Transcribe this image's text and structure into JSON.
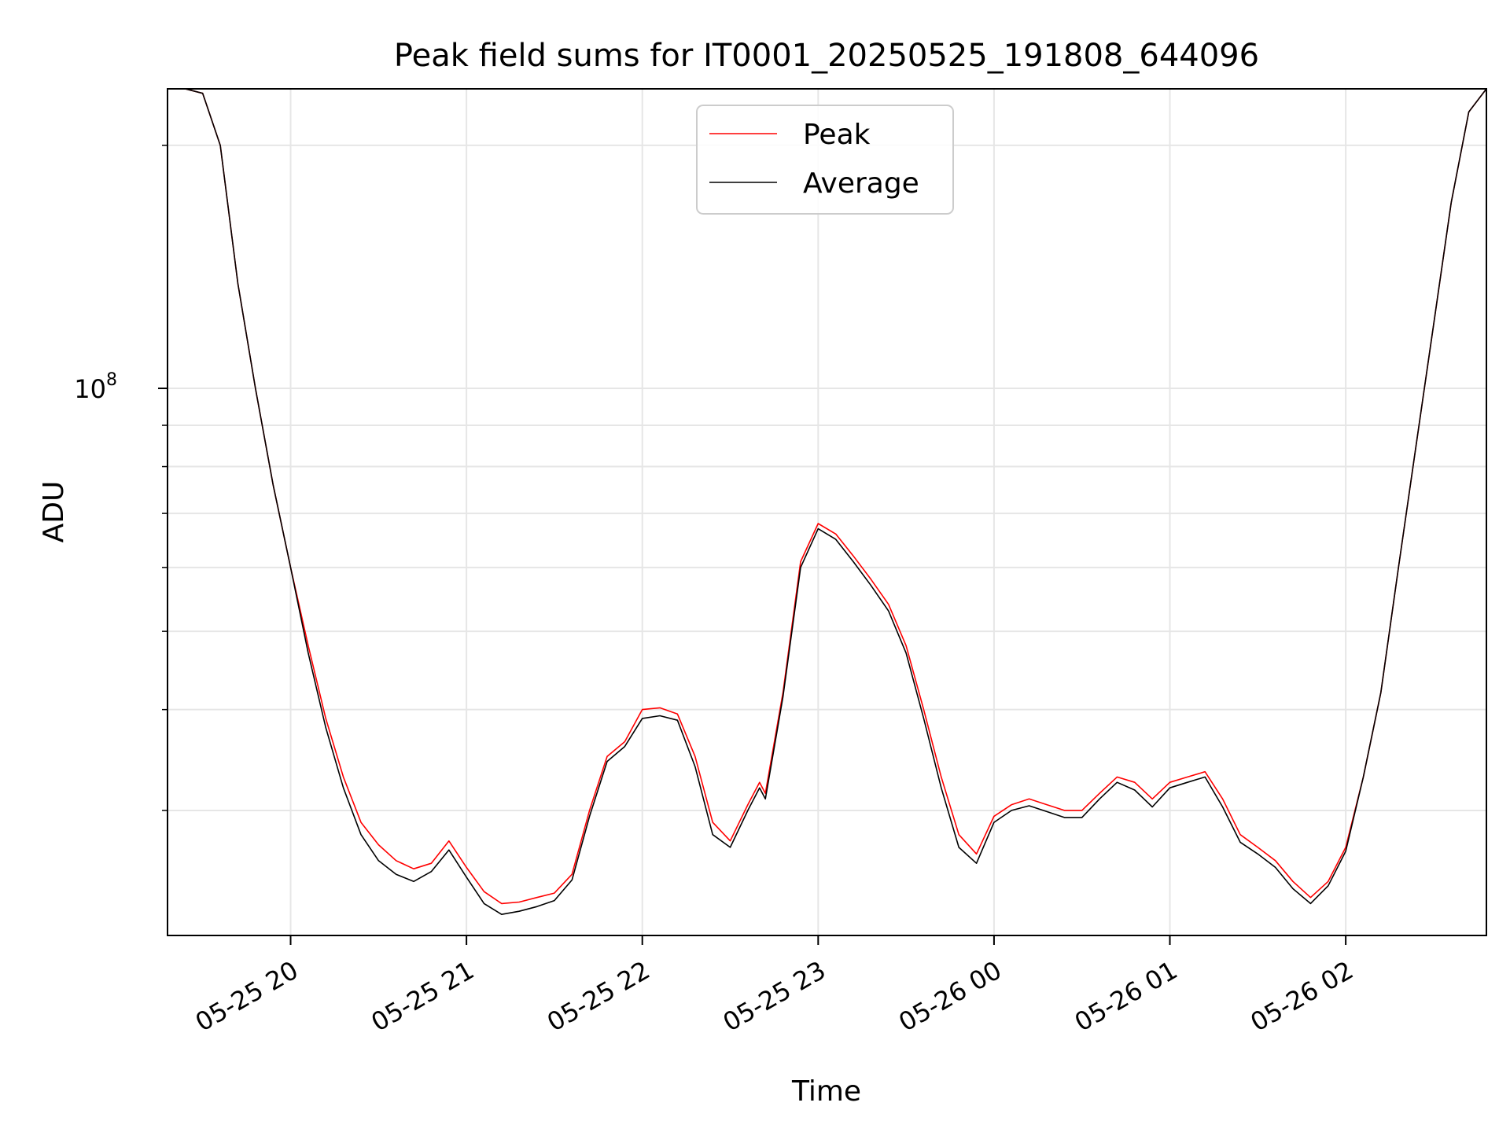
{
  "chart_data": {
    "type": "line",
    "title": "Peak field sums for IT0001_20250525_191808_644096",
    "xlabel": "Time",
    "ylabel": "ADU",
    "yscale": "log",
    "grid": true,
    "legend_position": "top-center",
    "xlim": [
      "2025-05-25 19:18",
      "2025-05-26 02:48"
    ],
    "ylim": [
      21000000,
      235000000
    ],
    "x_ticks": [
      {
        "value": "2025-05-25 20:00",
        "label": "05-25 20"
      },
      {
        "value": "2025-05-25 21:00",
        "label": "05-25 21"
      },
      {
        "value": "2025-05-25 22:00",
        "label": "05-25 22"
      },
      {
        "value": "2025-05-25 23:00",
        "label": "05-25 23"
      },
      {
        "value": "2025-05-26 00:00",
        "label": "05-26 00"
      },
      {
        "value": "2025-05-26 01:00",
        "label": "05-26 01"
      },
      {
        "value": "2025-05-26 02:00",
        "label": "05-26 02"
      }
    ],
    "y_major_ticks": [
      {
        "value": 100000000,
        "base": "10",
        "exp": "8"
      }
    ],
    "y_minor_ticks": [
      30000000,
      40000000,
      50000000,
      60000000,
      70000000,
      80000000,
      90000000,
      200000000
    ],
    "series": [
      {
        "name": "Peak",
        "color": "#ff0000",
        "x": [
          "2025-05-25 19:18",
          "2025-05-25 19:24",
          "2025-05-25 19:30",
          "2025-05-25 19:36",
          "2025-05-25 19:42",
          "2025-05-25 19:48",
          "2025-05-25 19:54",
          "2025-05-25 20:00",
          "2025-05-25 20:06",
          "2025-05-25 20:12",
          "2025-05-25 20:18",
          "2025-05-25 20:24",
          "2025-05-25 20:30",
          "2025-05-25 20:36",
          "2025-05-25 20:42",
          "2025-05-25 20:48",
          "2025-05-25 20:54",
          "2025-05-25 21:00",
          "2025-05-25 21:06",
          "2025-05-25 21:12",
          "2025-05-25 21:18",
          "2025-05-25 21:24",
          "2025-05-25 21:30",
          "2025-05-25 21:36",
          "2025-05-25 21:42",
          "2025-05-25 21:48",
          "2025-05-25 21:54",
          "2025-05-25 22:00",
          "2025-05-25 22:06",
          "2025-05-25 22:12",
          "2025-05-25 22:18",
          "2025-05-25 22:24",
          "2025-05-25 22:30",
          "2025-05-25 22:36",
          "2025-05-25 22:40",
          "2025-05-25 22:42",
          "2025-05-25 22:48",
          "2025-05-25 22:54",
          "2025-05-25 23:00",
          "2025-05-25 23:06",
          "2025-05-25 23:12",
          "2025-05-25 23:18",
          "2025-05-25 23:24",
          "2025-05-25 23:30",
          "2025-05-25 23:36",
          "2025-05-25 23:42",
          "2025-05-25 23:48",
          "2025-05-25 23:54",
          "2025-05-26 00:00",
          "2025-05-26 00:06",
          "2025-05-26 00:12",
          "2025-05-26 00:18",
          "2025-05-26 00:24",
          "2025-05-26 00:30",
          "2025-05-26 00:36",
          "2025-05-26 00:42",
          "2025-05-26 00:48",
          "2025-05-26 00:54",
          "2025-05-26 01:00",
          "2025-05-26 01:06",
          "2025-05-26 01:12",
          "2025-05-26 01:18",
          "2025-05-26 01:24",
          "2025-05-26 01:30",
          "2025-05-26 01:36",
          "2025-05-26 01:42",
          "2025-05-26 01:48",
          "2025-05-26 01:54",
          "2025-05-26 02:00",
          "2025-05-26 02:06",
          "2025-05-26 02:12",
          "2025-05-26 02:18",
          "2025-05-26 02:24",
          "2025-05-26 02:30",
          "2025-05-26 02:36",
          "2025-05-26 02:42",
          "2025-05-26 02:48"
        ],
        "y": [
          235000000,
          235000000,
          232000000,
          200000000,
          135000000,
          100000000,
          76000000,
          60000000,
          48000000,
          39000000,
          33000000,
          29000000,
          27200000,
          26000000,
          25400000,
          25800000,
          27500000,
          25500000,
          23800000,
          23000000,
          23100000,
          23400000,
          23700000,
          25000000,
          30000000,
          35000000,
          36500000,
          40000000,
          40200000,
          39500000,
          35000000,
          29000000,
          27500000,
          30500000,
          32500000,
          31500000,
          42000000,
          61000000,
          68000000,
          66000000,
          62000000,
          58000000,
          54000000,
          48000000,
          40000000,
          33000000,
          28000000,
          26500000,
          29500000,
          30500000,
          31000000,
          30500000,
          30000000,
          30000000,
          31500000,
          33000000,
          32500000,
          31000000,
          32500000,
          33000000,
          33500000,
          31000000,
          28000000,
          27000000,
          26000000,
          24500000,
          23400000,
          24500000,
          27000000,
          33000000,
          42000000,
          60000000,
          85000000,
          120000000,
          170000000,
          220000000,
          235000000
        ]
      },
      {
        "name": "Average",
        "color": "#000000",
        "x": [
          "2025-05-25 19:18",
          "2025-05-25 19:24",
          "2025-05-25 19:30",
          "2025-05-25 19:36",
          "2025-05-25 19:42",
          "2025-05-25 19:48",
          "2025-05-25 19:54",
          "2025-05-25 20:00",
          "2025-05-25 20:06",
          "2025-05-25 20:12",
          "2025-05-25 20:18",
          "2025-05-25 20:24",
          "2025-05-25 20:30",
          "2025-05-25 20:36",
          "2025-05-25 20:42",
          "2025-05-25 20:48",
          "2025-05-25 20:54",
          "2025-05-25 21:00",
          "2025-05-25 21:06",
          "2025-05-25 21:12",
          "2025-05-25 21:18",
          "2025-05-25 21:24",
          "2025-05-25 21:30",
          "2025-05-25 21:36",
          "2025-05-25 21:42",
          "2025-05-25 21:48",
          "2025-05-25 21:54",
          "2025-05-25 22:00",
          "2025-05-25 22:06",
          "2025-05-25 22:12",
          "2025-05-25 22:18",
          "2025-05-25 22:24",
          "2025-05-25 22:30",
          "2025-05-25 22:36",
          "2025-05-25 22:40",
          "2025-05-25 22:42",
          "2025-05-25 22:48",
          "2025-05-25 22:54",
          "2025-05-25 23:00",
          "2025-05-25 23:06",
          "2025-05-25 23:12",
          "2025-05-25 23:18",
          "2025-05-25 23:24",
          "2025-05-25 23:30",
          "2025-05-25 23:36",
          "2025-05-25 23:42",
          "2025-05-25 23:48",
          "2025-05-25 23:54",
          "2025-05-26 00:00",
          "2025-05-26 00:06",
          "2025-05-26 00:12",
          "2025-05-26 00:18",
          "2025-05-26 00:24",
          "2025-05-26 00:30",
          "2025-05-26 00:36",
          "2025-05-26 00:42",
          "2025-05-26 00:48",
          "2025-05-26 00:54",
          "2025-05-26 01:00",
          "2025-05-26 01:06",
          "2025-05-26 01:12",
          "2025-05-26 01:18",
          "2025-05-26 01:24",
          "2025-05-26 01:30",
          "2025-05-26 01:36",
          "2025-05-26 01:42",
          "2025-05-26 01:48",
          "2025-05-26 01:54",
          "2025-05-26 02:00",
          "2025-05-26 02:06",
          "2025-05-26 02:12",
          "2025-05-26 02:18",
          "2025-05-26 02:24",
          "2025-05-26 02:30",
          "2025-05-26 02:36",
          "2025-05-26 02:42",
          "2025-05-26 02:48"
        ],
        "y": [
          235000000,
          235000000,
          232000000,
          200000000,
          135000000,
          100000000,
          76000000,
          60000000,
          47000000,
          38000000,
          32000000,
          28000000,
          26000000,
          25000000,
          24500000,
          25200000,
          26800000,
          24800000,
          23000000,
          22300000,
          22500000,
          22800000,
          23200000,
          24600000,
          29500000,
          34500000,
          36000000,
          39000000,
          39300000,
          38800000,
          34000000,
          28000000,
          27000000,
          30000000,
          32000000,
          31000000,
          41500000,
          60000000,
          67000000,
          65000000,
          61000000,
          57000000,
          53000000,
          47000000,
          39000000,
          32000000,
          27000000,
          25800000,
          29000000,
          30000000,
          30400000,
          29900000,
          29400000,
          29400000,
          31000000,
          32500000,
          31800000,
          30300000,
          32000000,
          32500000,
          33000000,
          30300000,
          27400000,
          26500000,
          25500000,
          24000000,
          23000000,
          24200000,
          26700000,
          33000000,
          42000000,
          60000000,
          85000000,
          120000000,
          170000000,
          220000000,
          235000000
        ]
      }
    ]
  }
}
